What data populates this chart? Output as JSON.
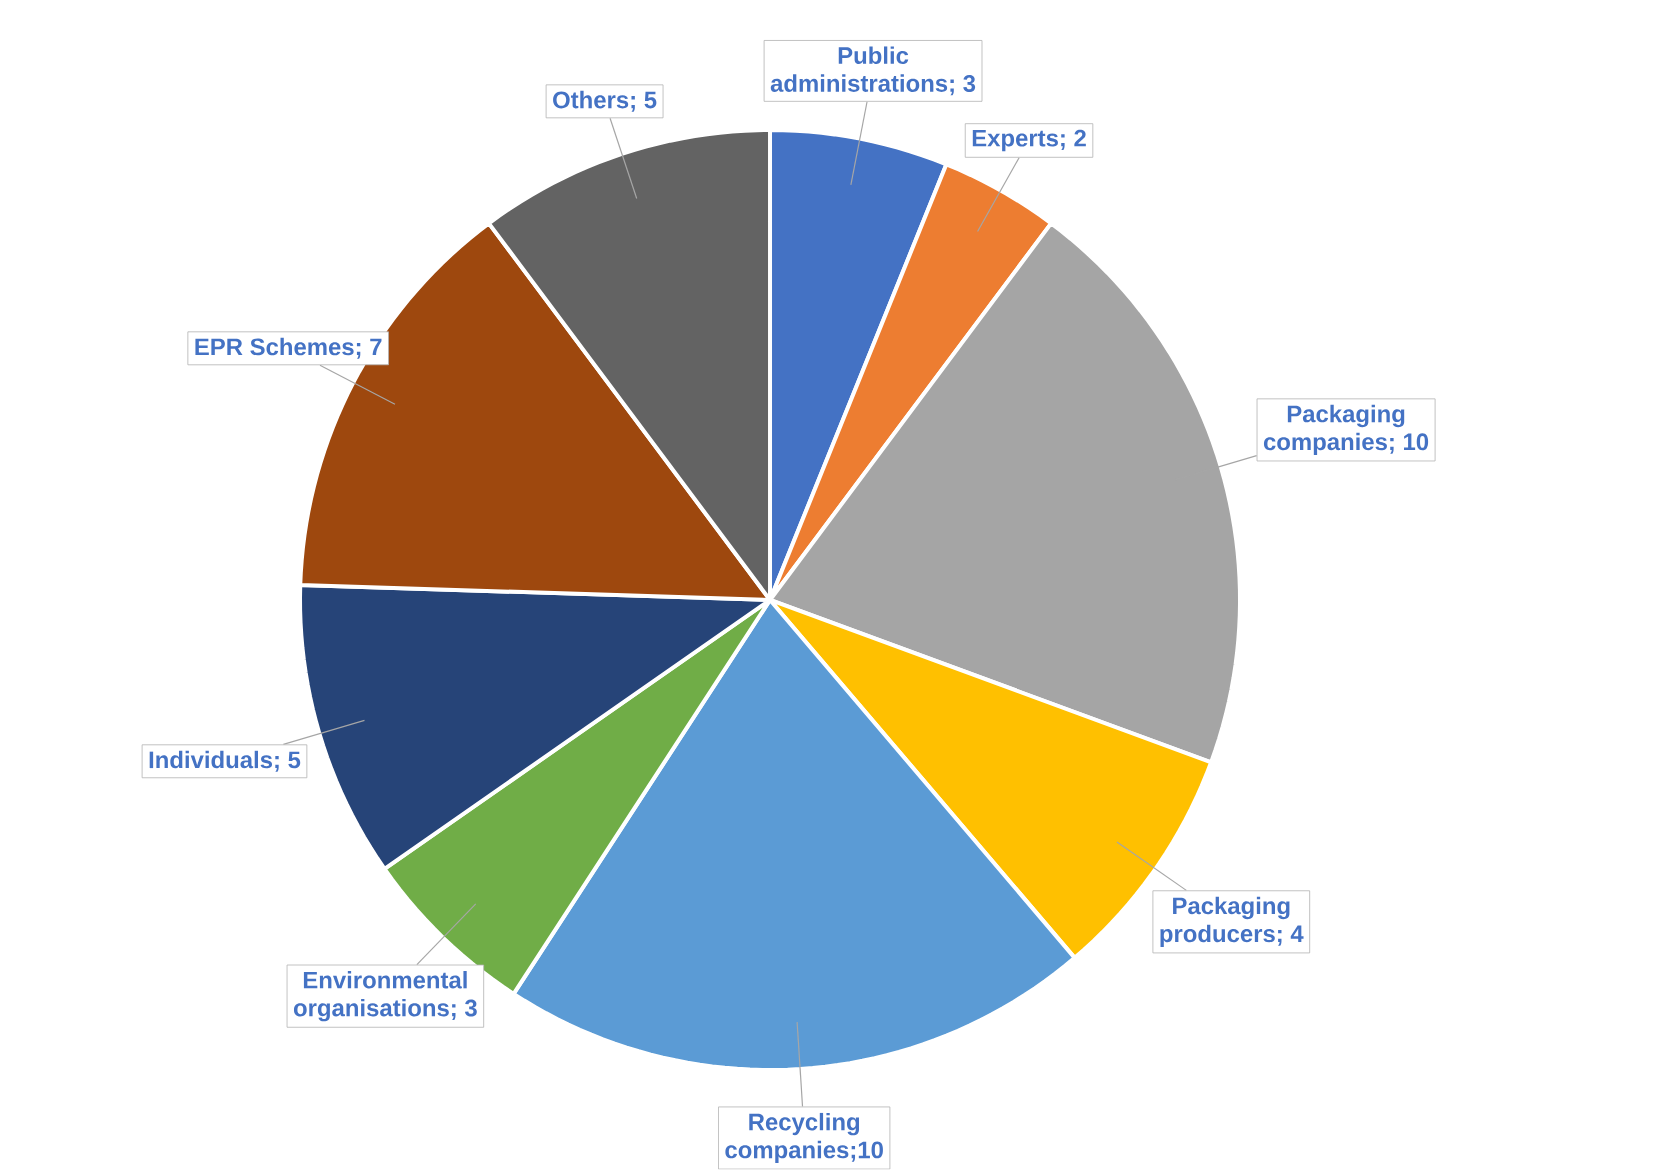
{
  "chart_data": {
    "type": "pie",
    "categories": [
      "Public administrations; 3",
      "Experts; 2",
      "Packaging companies; 10",
      "Packaging producers; 4",
      "Recycling companies;10",
      "Environmental organisations; 3",
      "Individuals; 5",
      "EPR Schemes; 7",
      "Others; 5"
    ],
    "values": [
      3,
      2,
      10,
      4,
      10,
      3,
      5,
      7,
      5
    ],
    "colors": [
      "#4472c4",
      "#ed7d31",
      "#a5a5a5",
      "#ffc000",
      "#5b9bd5",
      "#70ad47",
      "#264478",
      "#9e480e",
      "#636363"
    ]
  }
}
